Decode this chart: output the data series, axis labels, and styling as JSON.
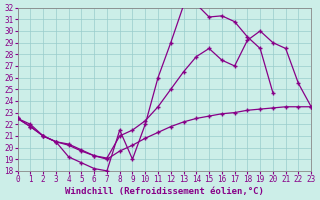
{
  "xlabel": "Windchill (Refroidissement éolien,°C)",
  "bg_color": "#cceee8",
  "line_color": "#880088",
  "xlim": [
    0,
    23
  ],
  "ylim": [
    18,
    32
  ],
  "xticks": [
    0,
    1,
    2,
    3,
    4,
    5,
    6,
    7,
    8,
    9,
    10,
    11,
    12,
    13,
    14,
    15,
    16,
    17,
    18,
    19,
    20,
    21,
    22,
    23
  ],
  "yticks": [
    18,
    19,
    20,
    21,
    22,
    23,
    24,
    25,
    26,
    27,
    28,
    29,
    30,
    31,
    32
  ],
  "s1_x": [
    0,
    1,
    2,
    3,
    4,
    5,
    6,
    7,
    8,
    9,
    10,
    11,
    12,
    13,
    14,
    15,
    16,
    17,
    18,
    19,
    20
  ],
  "s1_y": [
    22.5,
    22.0,
    21.0,
    20.5,
    19.2,
    18.7,
    18.2,
    18.0,
    21.5,
    19.0,
    22.0,
    26.0,
    29.0,
    32.2,
    32.3,
    31.2,
    31.3,
    30.8,
    29.5,
    28.5,
    24.7
  ],
  "s2_x": [
    0,
    1,
    2,
    3,
    4,
    5,
    6,
    7,
    8,
    9,
    10,
    11,
    12,
    13,
    14,
    15,
    16,
    17,
    18,
    19,
    20,
    21,
    22,
    23
  ],
  "s2_y": [
    22.5,
    21.8,
    21.0,
    20.5,
    20.3,
    19.8,
    19.3,
    19.1,
    21.0,
    21.5,
    22.3,
    23.5,
    25.0,
    26.5,
    27.8,
    28.5,
    27.5,
    27.0,
    29.2,
    30.0,
    29.0,
    28.5,
    25.5,
    23.5
  ],
  "s3_x": [
    0,
    1,
    2,
    3,
    4,
    5,
    6,
    7,
    8,
    9,
    10,
    11,
    12,
    13,
    14,
    15,
    16,
    17,
    18,
    19,
    20,
    21,
    22,
    23
  ],
  "s3_y": [
    22.5,
    21.8,
    21.0,
    20.5,
    20.2,
    19.7,
    19.3,
    19.0,
    19.7,
    20.2,
    20.8,
    21.3,
    21.8,
    22.2,
    22.5,
    22.7,
    22.9,
    23.0,
    23.2,
    23.3,
    23.4,
    23.5,
    23.5,
    23.5
  ],
  "grid_color": "#99cccc",
  "tick_fontsize": 5.5,
  "xlabel_fontsize": 6.5
}
